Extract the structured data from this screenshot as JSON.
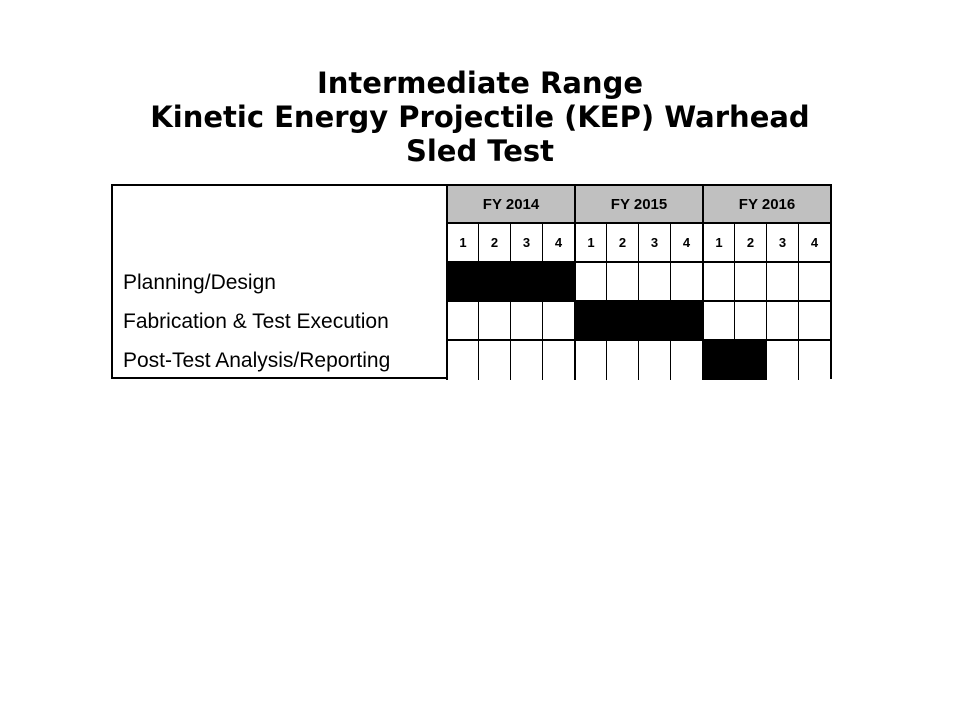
{
  "title": {
    "line1": "Intermediate Range",
    "line2": "Kinetic Energy Projectile (KEP) Warhead",
    "line3": "Sled Test"
  },
  "chart_data": {
    "type": "table",
    "subtype": "gantt",
    "years": [
      "FY 2014",
      "FY 2015",
      "FY 2016"
    ],
    "quarters": [
      "1",
      "2",
      "3",
      "4"
    ],
    "tasks": [
      {
        "name": "Planning/Design",
        "start": {
          "year": "FY 2014",
          "quarter": 1
        },
        "end": {
          "year": "FY 2014",
          "quarter": 4
        }
      },
      {
        "name": "Fabrication & Test Execution",
        "start": {
          "year": "FY 2015",
          "quarter": 1
        },
        "end": {
          "year": "FY 2015",
          "quarter": 4
        }
      },
      {
        "name": "Post-Test Analysis/Reporting",
        "start": {
          "year": "FY 2016",
          "quarter": 1
        },
        "end": {
          "year": "FY 2016",
          "quarter": 2
        }
      }
    ],
    "header_fill_color": "#c0c0c0",
    "bar_color": "#000000"
  }
}
